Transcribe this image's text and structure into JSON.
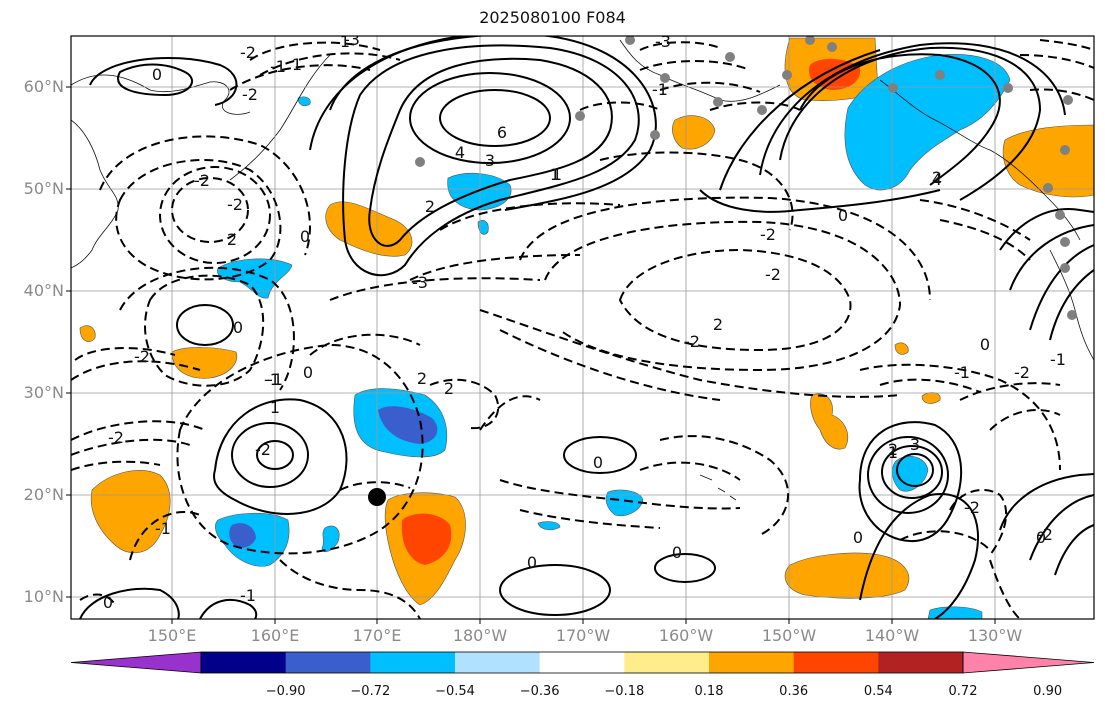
{
  "title": "2025080100 F084",
  "lat_labels": [
    "60°N",
    "50°N",
    "40°N",
    "30°N",
    "20°N",
    "10°N"
  ],
  "lon_labels": [
    "150°E",
    "160°E",
    "170°E",
    "180°W",
    "170°W",
    "160°W",
    "150°W",
    "140°W",
    "130°W"
  ],
  "colorbar": {
    "ticks": [
      "−0.90",
      "−0.72",
      "−0.54",
      "−0.36",
      "−0.18",
      "0.18",
      "0.36",
      "0.54",
      "0.72",
      "0.90"
    ],
    "colors": [
      "#9932cc",
      "#00008b",
      "#3a5fcd",
      "#00bfff",
      "#b0e2ff",
      "#ffffff",
      "#ffec8b",
      "#ffa500",
      "#ff4500",
      "#b22222",
      "#ff82ab"
    ]
  },
  "contour_labels": [
    "-3",
    "-2",
    "-1",
    "1",
    "0",
    "-2",
    "2",
    "6",
    "4",
    "3",
    "2",
    "1",
    "0",
    "-1",
    "-3",
    "-2",
    "-2",
    "-2",
    "0",
    "-1",
    "-2",
    "2",
    "2",
    "1",
    "0",
    "-2",
    "-1",
    "-1",
    "0",
    "1",
    "-2",
    "2",
    "-2",
    "-2",
    "0",
    "0",
    "-3",
    "-1",
    "1",
    "0",
    "0",
    "2",
    "-1",
    "-1",
    "-2",
    "0",
    "-2",
    "1",
    "2",
    "3",
    "4",
    "-2",
    "0",
    "0"
  ],
  "marker": {
    "lon": "170°E",
    "lat": "20°N"
  }
}
